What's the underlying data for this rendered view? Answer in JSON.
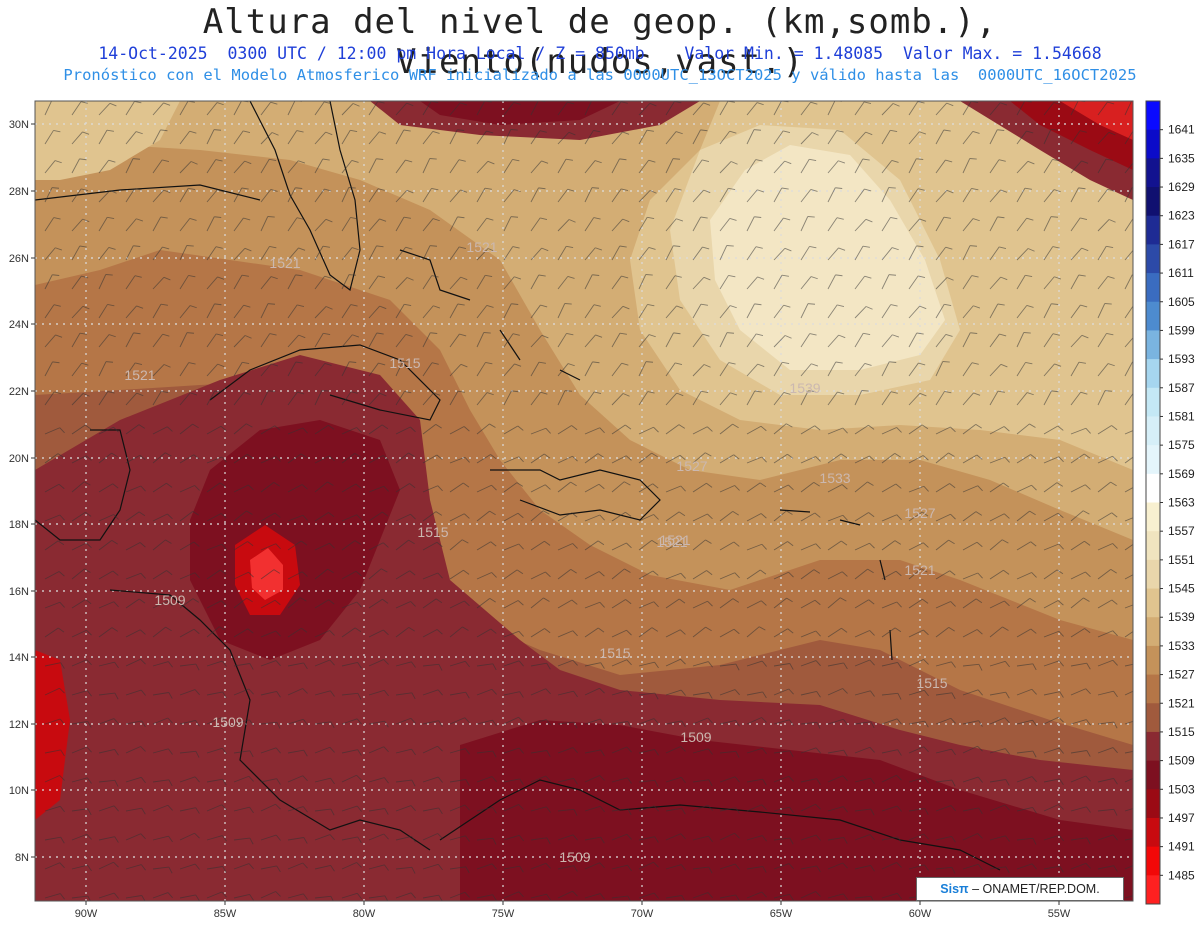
{
  "header": {
    "title": "Altura del nivel de geop. (km,somb.), Viento(nudos,vast.)",
    "subtitle_line1": "14-Oct-2025  0300 UTC / 12:00 pm Hora Local / Z = 850mb    Valor Min. = 1.48085  Valor Max. = 1.54668",
    "subtitle_line2": "Pronóstico con el Modelo Atmosferico WRF inicializado a las 0000UTC_13OCT2025 y válido hasta las  0000UTC_16OCT2025"
  },
  "map": {
    "lon_labels": [
      "90W",
      "85W",
      "80W",
      "75W",
      "70W",
      "65W",
      "60W",
      "55W"
    ],
    "lat_labels": [
      "30N",
      "28N",
      "26N",
      "24N",
      "22N",
      "20N",
      "18N",
      "16N",
      "14N",
      "12N",
      "10N",
      "8N"
    ],
    "contour_labels": [
      "1521",
      "1521",
      "1521",
      "1515",
      "1521",
      "1539",
      "1527",
      "1533",
      "1527",
      "1521",
      "1521",
      "1515",
      "1515",
      "1515",
      "1509",
      "1509",
      "1509",
      "1509"
    ]
  },
  "colorbar": {
    "levels": [
      "1641",
      "1635",
      "1629",
      "1623",
      "1617",
      "1611",
      "1605",
      "1599",
      "1593",
      "1587",
      "1581",
      "1575",
      "1569",
      "1563",
      "1557",
      "1551",
      "1545",
      "1539",
      "1533",
      "1527",
      "1521",
      "1515",
      "1509",
      "1503",
      "1497",
      "1491",
      "1485"
    ],
    "colors": [
      "#0a0aff",
      "#0b0bc9",
      "#12128f",
      "#101070",
      "#1e2b94",
      "#2c4aa8",
      "#3a6cc0",
      "#4d8bcf",
      "#7ab4e0",
      "#a6d6ef",
      "#c4e8f5",
      "#d6eff8",
      "#e4f5fb",
      "#ffffff",
      "#f8f0d0",
      "#f0e4bf",
      "#e9d6ab",
      "#e0c48f",
      "#d3ad74",
      "#c4925a",
      "#b57647",
      "#a05a3d",
      "#8a2a32",
      "#7d1020",
      "#9b0a14",
      "#c80a0f",
      "#f20808",
      "#ff2020"
    ]
  },
  "credit": {
    "brand": "Sisπ",
    "text": "– ONAMET/REP.DOM."
  }
}
